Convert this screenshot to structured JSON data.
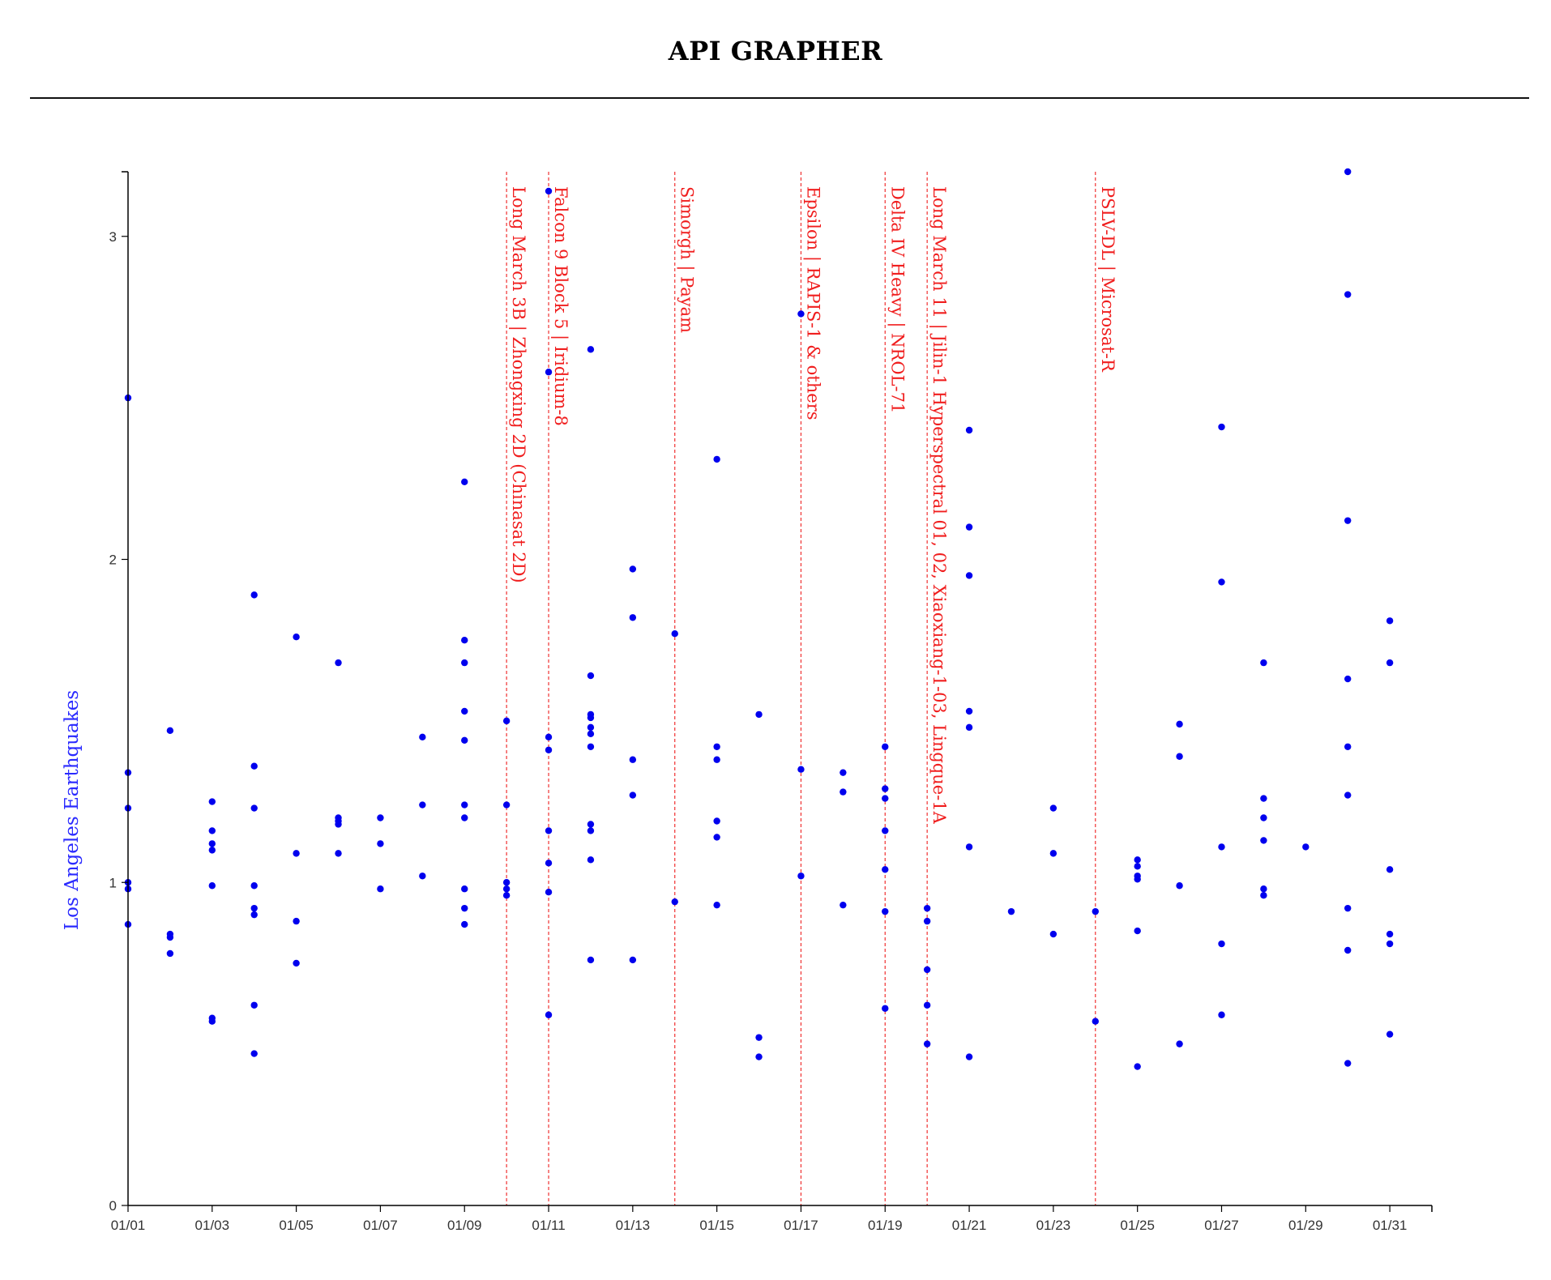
{
  "header": {
    "title": "API GRAPHER"
  },
  "colors": {
    "points": "#0000ee",
    "events": "#f03030",
    "axis": "#000000",
    "ylabel": "#2a2aff"
  },
  "chart_data": {
    "type": "scatter",
    "title": "API GRAPHER",
    "xlabel": "",
    "ylabel": "Los Angeles Earthquakes",
    "x_type": "date",
    "xlim": [
      "01/01",
      "02/01"
    ],
    "ylim": [
      0,
      3.2
    ],
    "x_ticks": [
      "01/01",
      "01/03",
      "01/05",
      "01/07",
      "01/09",
      "01/11",
      "01/13",
      "01/15",
      "01/17",
      "01/19",
      "01/21",
      "01/23",
      "01/25",
      "01/27",
      "01/29",
      "01/31"
    ],
    "y_ticks": [
      "0",
      "1",
      "2",
      "3"
    ],
    "grid": false,
    "series": [
      {
        "points": [
          {
            "x": "01/01",
            "y": 2.5
          },
          {
            "x": "01/01",
            "y": 1.34
          },
          {
            "x": "01/01",
            "y": 1.23
          },
          {
            "x": "01/01",
            "y": 1.0
          },
          {
            "x": "01/01",
            "y": 0.98
          },
          {
            "x": "01/01",
            "y": 0.87
          },
          {
            "x": "01/02",
            "y": 1.47
          },
          {
            "x": "01/02",
            "y": 0.84
          },
          {
            "x": "01/02",
            "y": 0.83
          },
          {
            "x": "01/02",
            "y": 0.78
          },
          {
            "x": "01/03",
            "y": 1.25
          },
          {
            "x": "01/03",
            "y": 1.16
          },
          {
            "x": "01/03",
            "y": 1.12
          },
          {
            "x": "01/03",
            "y": 1.1
          },
          {
            "x": "01/03",
            "y": 0.99
          },
          {
            "x": "01/03",
            "y": 0.58
          },
          {
            "x": "01/03",
            "y": 0.57
          },
          {
            "x": "01/04",
            "y": 1.89
          },
          {
            "x": "01/04",
            "y": 1.36
          },
          {
            "x": "01/04",
            "y": 1.23
          },
          {
            "x": "01/04",
            "y": 0.99
          },
          {
            "x": "01/04",
            "y": 0.92
          },
          {
            "x": "01/04",
            "y": 0.9
          },
          {
            "x": "01/04",
            "y": 0.62
          },
          {
            "x": "01/04",
            "y": 0.47
          },
          {
            "x": "01/05",
            "y": 1.76
          },
          {
            "x": "01/05",
            "y": 1.09
          },
          {
            "x": "01/05",
            "y": 0.88
          },
          {
            "x": "01/05",
            "y": 0.75
          },
          {
            "x": "01/06",
            "y": 1.68
          },
          {
            "x": "01/06",
            "y": 1.2
          },
          {
            "x": "01/06",
            "y": 1.19
          },
          {
            "x": "01/06",
            "y": 1.18
          },
          {
            "x": "01/06",
            "y": 1.09
          },
          {
            "x": "01/07",
            "y": 1.2
          },
          {
            "x": "01/07",
            "y": 1.12
          },
          {
            "x": "01/07",
            "y": 0.98
          },
          {
            "x": "01/08",
            "y": 1.45
          },
          {
            "x": "01/08",
            "y": 1.24
          },
          {
            "x": "01/08",
            "y": 1.02
          },
          {
            "x": "01/09",
            "y": 2.24
          },
          {
            "x": "01/09",
            "y": 1.75
          },
          {
            "x": "01/09",
            "y": 1.68
          },
          {
            "x": "01/09",
            "y": 1.53
          },
          {
            "x": "01/09",
            "y": 1.44
          },
          {
            "x": "01/09",
            "y": 1.24
          },
          {
            "x": "01/09",
            "y": 1.2
          },
          {
            "x": "01/09",
            "y": 0.98
          },
          {
            "x": "01/09",
            "y": 0.92
          },
          {
            "x": "01/09",
            "y": 0.87
          },
          {
            "x": "01/10",
            "y": 1.5
          },
          {
            "x": "01/10",
            "y": 1.24
          },
          {
            "x": "01/10",
            "y": 1.0
          },
          {
            "x": "01/10",
            "y": 0.98
          },
          {
            "x": "01/10",
            "y": 0.96
          },
          {
            "x": "01/11",
            "y": 3.14
          },
          {
            "x": "01/11",
            "y": 2.58
          },
          {
            "x": "01/11",
            "y": 1.45
          },
          {
            "x": "01/11",
            "y": 1.41
          },
          {
            "x": "01/11",
            "y": 1.16
          },
          {
            "x": "01/11",
            "y": 1.06
          },
          {
            "x": "01/11",
            "y": 0.97
          },
          {
            "x": "01/11",
            "y": 0.59
          },
          {
            "x": "01/12",
            "y": 2.65
          },
          {
            "x": "01/12",
            "y": 1.64
          },
          {
            "x": "01/12",
            "y": 1.52
          },
          {
            "x": "01/12",
            "y": 1.51
          },
          {
            "x": "01/12",
            "y": 1.48
          },
          {
            "x": "01/12",
            "y": 1.46
          },
          {
            "x": "01/12",
            "y": 1.42
          },
          {
            "x": "01/12",
            "y": 1.18
          },
          {
            "x": "01/12",
            "y": 1.16
          },
          {
            "x": "01/12",
            "y": 1.07
          },
          {
            "x": "01/12",
            "y": 0.76
          },
          {
            "x": "01/13",
            "y": 1.97
          },
          {
            "x": "01/13",
            "y": 1.82
          },
          {
            "x": "01/13",
            "y": 1.38
          },
          {
            "x": "01/13",
            "y": 1.27
          },
          {
            "x": "01/13",
            "y": 0.76
          },
          {
            "x": "01/14",
            "y": 1.77
          },
          {
            "x": "01/14",
            "y": 0.94
          },
          {
            "x": "01/15",
            "y": 2.31
          },
          {
            "x": "01/15",
            "y": 1.42
          },
          {
            "x": "01/15",
            "y": 1.38
          },
          {
            "x": "01/15",
            "y": 1.19
          },
          {
            "x": "01/15",
            "y": 1.14
          },
          {
            "x": "01/15",
            "y": 0.93
          },
          {
            "x": "01/16",
            "y": 1.52
          },
          {
            "x": "01/16",
            "y": 0.52
          },
          {
            "x": "01/16",
            "y": 0.46
          },
          {
            "x": "01/17",
            "y": 2.76
          },
          {
            "x": "01/17",
            "y": 1.35
          },
          {
            "x": "01/17",
            "y": 1.02
          },
          {
            "x": "01/18",
            "y": 1.34
          },
          {
            "x": "01/18",
            "y": 1.28
          },
          {
            "x": "01/18",
            "y": 0.93
          },
          {
            "x": "01/19",
            "y": 1.42
          },
          {
            "x": "01/19",
            "y": 1.29
          },
          {
            "x": "01/19",
            "y": 1.26
          },
          {
            "x": "01/19",
            "y": 1.16
          },
          {
            "x": "01/19",
            "y": 1.04
          },
          {
            "x": "01/19",
            "y": 0.91
          },
          {
            "x": "01/19",
            "y": 0.61
          },
          {
            "x": "01/20",
            "y": 0.92
          },
          {
            "x": "01/20",
            "y": 0.88
          },
          {
            "x": "01/20",
            "y": 0.73
          },
          {
            "x": "01/20",
            "y": 0.62
          },
          {
            "x": "01/20",
            "y": 0.5
          },
          {
            "x": "01/21",
            "y": 2.4
          },
          {
            "x": "01/21",
            "y": 2.1
          },
          {
            "x": "01/21",
            "y": 1.95
          },
          {
            "x": "01/21",
            "y": 1.53
          },
          {
            "x": "01/21",
            "y": 1.48
          },
          {
            "x": "01/21",
            "y": 1.11
          },
          {
            "x": "01/21",
            "y": 0.46
          },
          {
            "x": "01/22",
            "y": 0.91
          },
          {
            "x": "01/23",
            "y": 1.23
          },
          {
            "x": "01/23",
            "y": 1.09
          },
          {
            "x": "01/23",
            "y": 0.84
          },
          {
            "x": "01/24",
            "y": 0.91
          },
          {
            "x": "01/24",
            "y": 0.57
          },
          {
            "x": "01/25",
            "y": 1.07
          },
          {
            "x": "01/25",
            "y": 1.05
          },
          {
            "x": "01/25",
            "y": 1.02
          },
          {
            "x": "01/25",
            "y": 1.01
          },
          {
            "x": "01/25",
            "y": 0.85
          },
          {
            "x": "01/25",
            "y": 0.43
          },
          {
            "x": "01/26",
            "y": 1.49
          },
          {
            "x": "01/26",
            "y": 1.39
          },
          {
            "x": "01/26",
            "y": 0.99
          },
          {
            "x": "01/26",
            "y": 0.5
          },
          {
            "x": "01/27",
            "y": 2.41
          },
          {
            "x": "01/27",
            "y": 1.93
          },
          {
            "x": "01/27",
            "y": 1.11
          },
          {
            "x": "01/27",
            "y": 0.81
          },
          {
            "x": "01/27",
            "y": 0.59
          },
          {
            "x": "01/28",
            "y": 1.68
          },
          {
            "x": "01/28",
            "y": 1.26
          },
          {
            "x": "01/28",
            "y": 1.2
          },
          {
            "x": "01/28",
            "y": 1.13
          },
          {
            "x": "01/28",
            "y": 0.98
          },
          {
            "x": "01/28",
            "y": 0.96
          },
          {
            "x": "01/29",
            "y": 1.11
          },
          {
            "x": "01/30",
            "y": 3.2
          },
          {
            "x": "01/30",
            "y": 2.82
          },
          {
            "x": "01/30",
            "y": 2.12
          },
          {
            "x": "01/30",
            "y": 1.63
          },
          {
            "x": "01/30",
            "y": 1.42
          },
          {
            "x": "01/30",
            "y": 1.27
          },
          {
            "x": "01/30",
            "y": 0.92
          },
          {
            "x": "01/30",
            "y": 0.79
          },
          {
            "x": "01/30",
            "y": 0.44
          },
          {
            "x": "01/31",
            "y": 1.81
          },
          {
            "x": "01/31",
            "y": 1.68
          },
          {
            "x": "01/31",
            "y": 1.04
          },
          {
            "x": "01/31",
            "y": 0.84
          },
          {
            "x": "01/31",
            "y": 0.81
          },
          {
            "x": "01/31",
            "y": 0.53
          }
        ]
      }
    ],
    "annotations": [
      {
        "x": "01/10",
        "label": "Long March 3B | Zhongxing 2D (Chinasat 2D)"
      },
      {
        "x": "01/11",
        "label": "Falcon 9 Block 5 | Iridium-8"
      },
      {
        "x": "01/14",
        "label": "Simorgh | Payam"
      },
      {
        "x": "01/17",
        "label": "Epsilon | RAPIS-1 & others"
      },
      {
        "x": "01/19",
        "label": "Delta IV Heavy | NROL-71"
      },
      {
        "x": "01/20",
        "label": "Long March 11 | Jilin-1 Hyperspectral 01, 02, Xiaoxiang-1-03, Lingque-1A"
      },
      {
        "x": "01/24",
        "label": "PSLV-DL | Microsat-R"
      }
    ]
  }
}
